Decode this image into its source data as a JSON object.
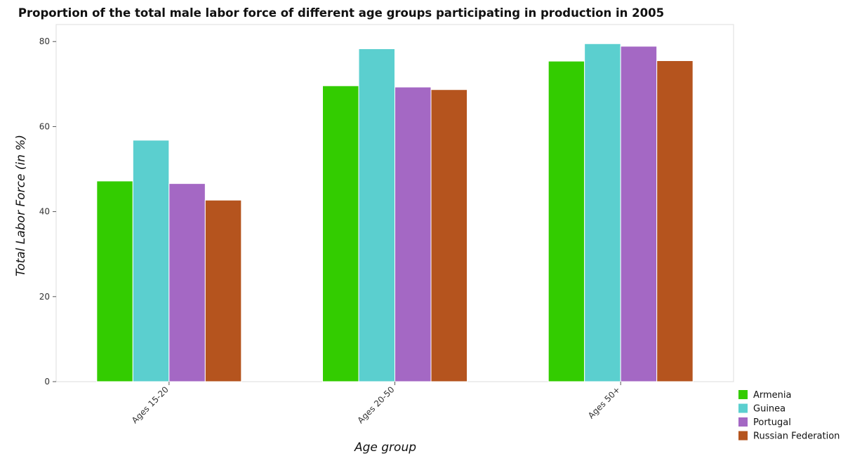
{
  "chart_data": {
    "type": "bar",
    "title": "Proportion of the total male labor force of different age groups participating in production in 2005",
    "xlabel": "Age group",
    "ylabel": "Total Labor Force (in %)",
    "categories": [
      "Ages 15-20",
      "Ages 20-50",
      "Ages 50+"
    ],
    "ylim": [
      0,
      84
    ],
    "yticks": [
      0,
      20,
      40,
      60,
      80
    ],
    "grid": false,
    "legend_position": "bottom-right",
    "series": [
      {
        "name": "Armenia",
        "color": "#33cc00",
        "values": [
          47.2,
          69.6,
          75.4
        ]
      },
      {
        "name": "Guinea",
        "color": "#5bcfcf",
        "values": [
          56.8,
          78.3,
          79.5
        ]
      },
      {
        "name": "Portugal",
        "color": "#a468c4",
        "values": [
          46.6,
          69.3,
          78.9
        ]
      },
      {
        "name": "Russian Federation",
        "color": "#b5541e",
        "values": [
          42.7,
          68.7,
          75.5
        ]
      }
    ]
  }
}
